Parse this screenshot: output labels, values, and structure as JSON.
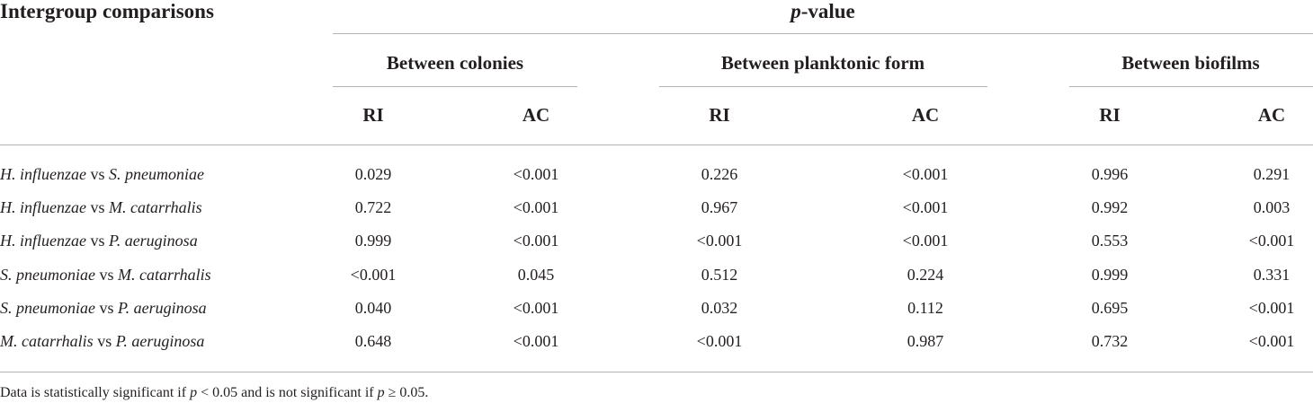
{
  "table": {
    "header": {
      "intergroup": "Intergroup comparisons",
      "pvalue_italic": "p",
      "pvalue_rest": "-value",
      "groups": [
        "Between colonies",
        "Between planktonic form",
        "Between biofilms"
      ],
      "subcols": [
        "RI",
        "AC",
        "RI",
        "AC",
        "RI",
        "AC"
      ]
    },
    "rows": [
      {
        "a": "H. influenzae",
        "vs": " vs ",
        "b": "S. pneumoniae",
        "values": [
          "0.029",
          "<0.001",
          "0.226",
          "<0.001",
          "0.996",
          "0.291"
        ]
      },
      {
        "a": "H. influenzae",
        "vs": " vs ",
        "b": "M. catarrhalis",
        "values": [
          "0.722",
          "<0.001",
          "0.967",
          "<0.001",
          "0.992",
          "0.003"
        ]
      },
      {
        "a": "H. influenzae",
        "vs": " vs ",
        "b": "P. aeruginosa",
        "values": [
          "0.999",
          "<0.001",
          "<0.001",
          "<0.001",
          "0.553",
          "<0.001"
        ]
      },
      {
        "a": "S. pneumoniae",
        "vs": " vs ",
        "b": "M. catarrhalis",
        "values": [
          "<0.001",
          "0.045",
          "0.512",
          "0.224",
          "0.999",
          "0.331"
        ]
      },
      {
        "a": "S. pneumoniae",
        "vs": " vs ",
        "b": "P. aeruginosa",
        "values": [
          "0.040",
          "<0.001",
          "0.032",
          "0.112",
          "0.695",
          "<0.001"
        ]
      },
      {
        "a": "M. catarrhalis",
        "vs": " vs ",
        "b": "P. aeruginosa",
        "values": [
          "0.648",
          "<0.001",
          "<0.001",
          "0.987",
          "0.732",
          "<0.001"
        ]
      }
    ],
    "footnote": {
      "t1": "Data is statistically significant if ",
      "p1": "p",
      "t2": " < 0.05 and is not significant if ",
      "p2": "p",
      "t3": " ≥ 0.05."
    }
  }
}
